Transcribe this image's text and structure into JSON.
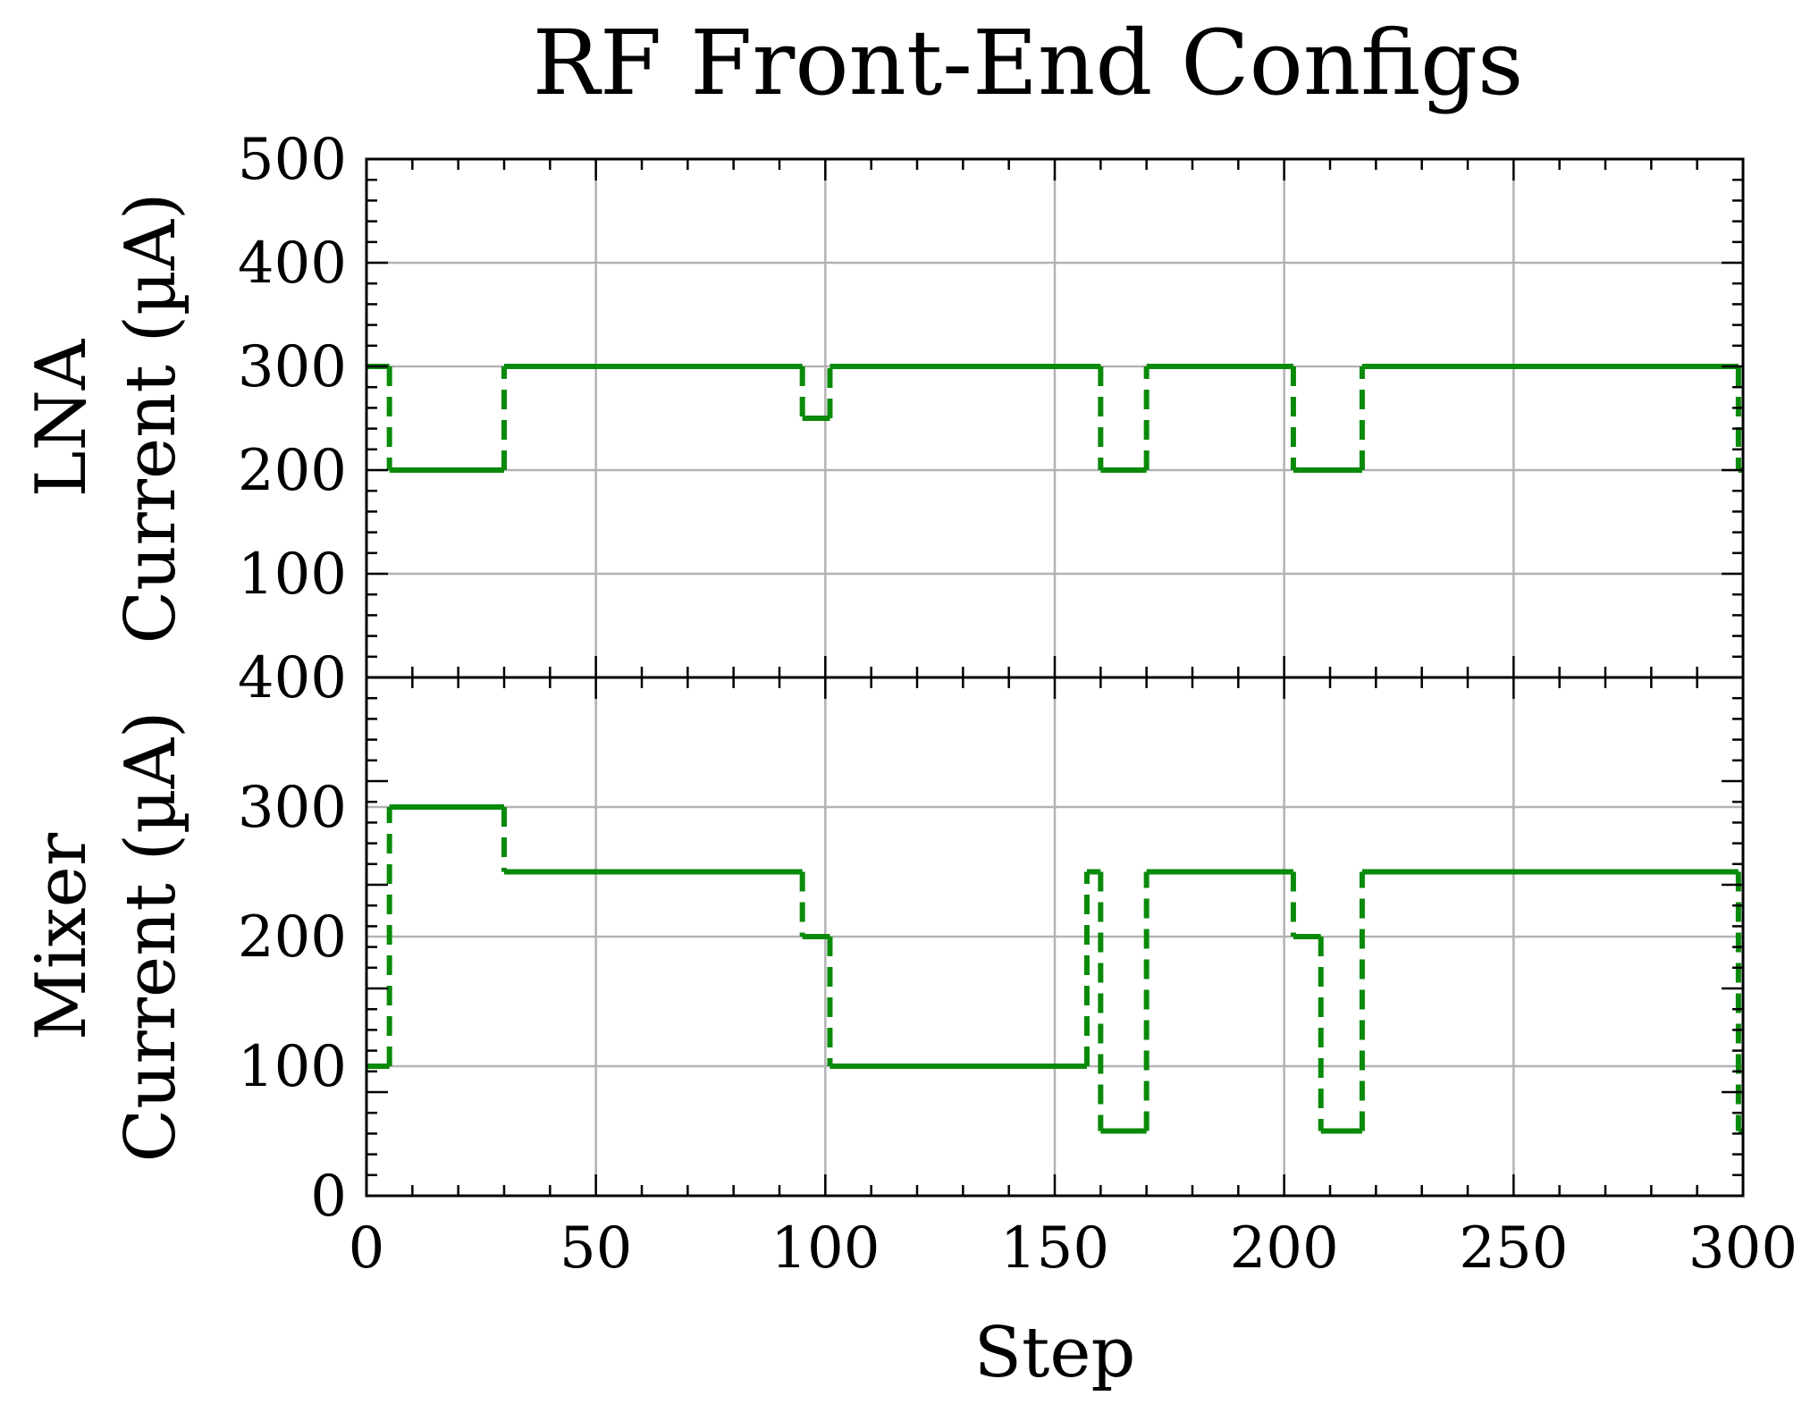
{
  "figure": {
    "title": "RF Front-End Configs",
    "line_color": "#0a8a0a",
    "grid_color": "#b3b3b3"
  },
  "chart_data": [
    {
      "type": "line",
      "title": "RF Front-End Configs",
      "ylabel_line1": "LNA",
      "ylabel_line2": "Current (µA)",
      "ylim": [
        0,
        500
      ],
      "yticks": [
        100,
        200,
        300,
        400,
        500
      ],
      "xlim": [
        0,
        300
      ],
      "grid": true,
      "step_style": "post",
      "series": [
        {
          "x": [
            0,
            5,
            30,
            95,
            101,
            160,
            170,
            202,
            217,
            299,
            300
          ],
          "y": [
            300,
            200,
            300,
            250,
            300,
            200,
            300,
            200,
            300,
            200,
            200
          ]
        }
      ]
    },
    {
      "type": "line",
      "ylabel_line1": "Mixer",
      "ylabel_line2": "Current (µA)",
      "ylim": [
        0,
        400
      ],
      "yticks": [
        0,
        100,
        200,
        300,
        400
      ],
      "xlim": [
        0,
        300
      ],
      "xlabel": "Step",
      "xticks": [
        0,
        50,
        100,
        150,
        200,
        250,
        300
      ],
      "grid": true,
      "step_style": "post",
      "series": [
        {
          "x": [
            0,
            5,
            30,
            95,
            101,
            157,
            160,
            170,
            202,
            208,
            217,
            299,
            300
          ],
          "y": [
            100,
            300,
            250,
            200,
            100,
            250,
            50,
            250,
            200,
            50,
            250,
            50,
            50
          ]
        }
      ]
    }
  ]
}
